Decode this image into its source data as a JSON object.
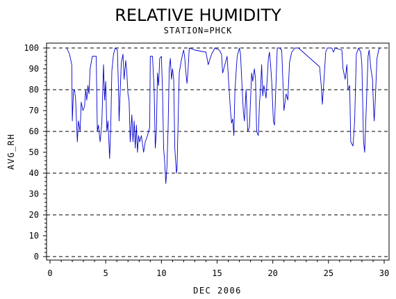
{
  "chart_data": {
    "type": "line",
    "title": "RELATIVE HUMIDITY",
    "subtitle": "STATION=PHCK",
    "xlabel": "DEC 2006",
    "ylabel": "AVG_RH",
    "xlim": [
      0,
      30
    ],
    "ylim": [
      0,
      100
    ],
    "x_ticks": [
      "0",
      "5",
      "10",
      "15",
      "20",
      "25",
      "30"
    ],
    "x_tick_values": [
      0,
      5,
      10,
      15,
      20,
      25,
      30
    ],
    "y_ticks": [
      "0",
      "10",
      "20",
      "30",
      "40",
      "50",
      "60",
      "70",
      "80",
      "90",
      "100"
    ],
    "y_tick_values": [
      0,
      10,
      20,
      30,
      40,
      50,
      60,
      70,
      80,
      90,
      100
    ],
    "reference_lines_y": [
      0,
      20,
      40,
      60,
      80,
      100
    ],
    "series_color": "#0000cc",
    "series": [
      {
        "values": [
          [
            1.5,
            100
          ],
          [
            1.75,
            97
          ],
          [
            1.95,
            92
          ],
          [
            2.0,
            65
          ],
          [
            2.1,
            79
          ],
          [
            2.2,
            80
          ],
          [
            2.3,
            75
          ],
          [
            2.45,
            55
          ],
          [
            2.55,
            65
          ],
          [
            2.7,
            60
          ],
          [
            2.8,
            74
          ],
          [
            2.95,
            70
          ],
          [
            3.1,
            72
          ],
          [
            3.2,
            80
          ],
          [
            3.3,
            75
          ],
          [
            3.4,
            82
          ],
          [
            3.5,
            78
          ],
          [
            3.6,
            90
          ],
          [
            3.8,
            96
          ],
          [
            4.15,
            96
          ],
          [
            4.25,
            60
          ],
          [
            4.35,
            63
          ],
          [
            4.5,
            55
          ],
          [
            4.65,
            64
          ],
          [
            4.8,
            92
          ],
          [
            4.9,
            75
          ],
          [
            5.0,
            84
          ],
          [
            5.1,
            60
          ],
          [
            5.2,
            65
          ],
          [
            5.35,
            47
          ],
          [
            5.45,
            62
          ],
          [
            5.55,
            89
          ],
          [
            5.7,
            97
          ],
          [
            5.85,
            100
          ],
          [
            6.05,
            99
          ],
          [
            6.15,
            80
          ],
          [
            6.2,
            65
          ],
          [
            6.4,
            93
          ],
          [
            6.55,
            97
          ],
          [
            6.65,
            85
          ],
          [
            6.8,
            94
          ],
          [
            6.9,
            88
          ],
          [
            7.0,
            78
          ],
          [
            7.1,
            75
          ],
          [
            7.2,
            55
          ],
          [
            7.35,
            68
          ],
          [
            7.45,
            55
          ],
          [
            7.55,
            65
          ],
          [
            7.65,
            52
          ],
          [
            7.75,
            63
          ],
          [
            7.85,
            50
          ],
          [
            7.95,
            58
          ],
          [
            8.05,
            55
          ],
          [
            8.2,
            58
          ],
          [
            8.4,
            50
          ],
          [
            8.55,
            55
          ],
          [
            8.75,
            58
          ],
          [
            8.95,
            62
          ],
          [
            9.0,
            96
          ],
          [
            9.2,
            96
          ],
          [
            9.35,
            80
          ],
          [
            9.45,
            52
          ],
          [
            9.55,
            60
          ],
          [
            9.65,
            88
          ],
          [
            9.75,
            82
          ],
          [
            9.85,
            95
          ],
          [
            10.0,
            96
          ],
          [
            10.1,
            80
          ],
          [
            10.2,
            52
          ],
          [
            10.3,
            45
          ],
          [
            10.4,
            35
          ],
          [
            10.5,
            43
          ],
          [
            10.6,
            62
          ],
          [
            10.7,
            90
          ],
          [
            10.8,
            95
          ],
          [
            10.9,
            85
          ],
          [
            11.0,
            90
          ],
          [
            11.1,
            85
          ],
          [
            11.2,
            52
          ],
          [
            11.35,
            40
          ],
          [
            11.4,
            42
          ],
          [
            11.5,
            65
          ],
          [
            11.6,
            88
          ],
          [
            11.75,
            93
          ],
          [
            11.9,
            97
          ],
          [
            12.0,
            99
          ],
          [
            12.1,
            95
          ],
          [
            12.2,
            88
          ],
          [
            12.3,
            83
          ],
          [
            12.4,
            90
          ],
          [
            12.5,
            100
          ],
          [
            13.0,
            99
          ],
          [
            14.0,
            98
          ],
          [
            14.2,
            92
          ],
          [
            14.5,
            97
          ],
          [
            14.8,
            100
          ],
          [
            15.2,
            99
          ],
          [
            15.4,
            97
          ],
          [
            15.5,
            88
          ],
          [
            15.7,
            92
          ],
          [
            15.9,
            96
          ],
          [
            16.2,
            70
          ],
          [
            16.3,
            64
          ],
          [
            16.4,
            66
          ],
          [
            16.5,
            58
          ],
          [
            16.6,
            80
          ],
          [
            16.8,
            96
          ],
          [
            17.0,
            100
          ],
          [
            17.1,
            97
          ],
          [
            17.25,
            80
          ],
          [
            17.35,
            70
          ],
          [
            17.45,
            65
          ],
          [
            17.6,
            80
          ],
          [
            17.75,
            60
          ],
          [
            17.9,
            62
          ],
          [
            18.1,
            88
          ],
          [
            18.2,
            84
          ],
          [
            18.35,
            90
          ],
          [
            18.45,
            85
          ],
          [
            18.55,
            60
          ],
          [
            18.7,
            58
          ],
          [
            18.8,
            73
          ],
          [
            18.9,
            80
          ],
          [
            19.0,
            92
          ],
          [
            19.1,
            77
          ],
          [
            19.2,
            82
          ],
          [
            19.4,
            76
          ],
          [
            19.6,
            95
          ],
          [
            19.7,
            98
          ],
          [
            19.8,
            92
          ],
          [
            19.9,
            84
          ],
          [
            20.05,
            65
          ],
          [
            20.15,
            63
          ],
          [
            20.3,
            85
          ],
          [
            20.4,
            100
          ],
          [
            20.6,
            100
          ],
          [
            20.8,
            99
          ],
          [
            20.9,
            85
          ],
          [
            21.0,
            70
          ],
          [
            21.2,
            78
          ],
          [
            21.35,
            75
          ],
          [
            21.5,
            93
          ],
          [
            21.7,
            98
          ],
          [
            22.0,
            100
          ],
          [
            22.3,
            100
          ],
          [
            24.2,
            91
          ],
          [
            24.35,
            82
          ],
          [
            24.45,
            73
          ],
          [
            24.6,
            85
          ],
          [
            24.75,
            98
          ],
          [
            24.9,
            100
          ],
          [
            25.3,
            100
          ],
          [
            25.45,
            98
          ],
          [
            25.6,
            100
          ],
          [
            26.2,
            99
          ],
          [
            26.3,
            90
          ],
          [
            26.5,
            85
          ],
          [
            26.65,
            92
          ],
          [
            26.75,
            80
          ],
          [
            26.9,
            82
          ],
          [
            27.0,
            55
          ],
          [
            27.2,
            53
          ],
          [
            27.35,
            65
          ],
          [
            27.5,
            97
          ],
          [
            27.7,
            100
          ],
          [
            27.9,
            98
          ],
          [
            28.0,
            92
          ],
          [
            28.15,
            55
          ],
          [
            28.25,
            50
          ],
          [
            28.4,
            72
          ],
          [
            28.55,
            96
          ],
          [
            28.65,
            99
          ],
          [
            28.8,
            90
          ],
          [
            28.95,
            85
          ],
          [
            29.05,
            70
          ],
          [
            29.1,
            65
          ],
          [
            29.2,
            75
          ],
          [
            29.35,
            95
          ],
          [
            29.5,
            99
          ],
          [
            29.6,
            100
          ],
          [
            29.65,
            100
          ]
        ]
      }
    ]
  }
}
